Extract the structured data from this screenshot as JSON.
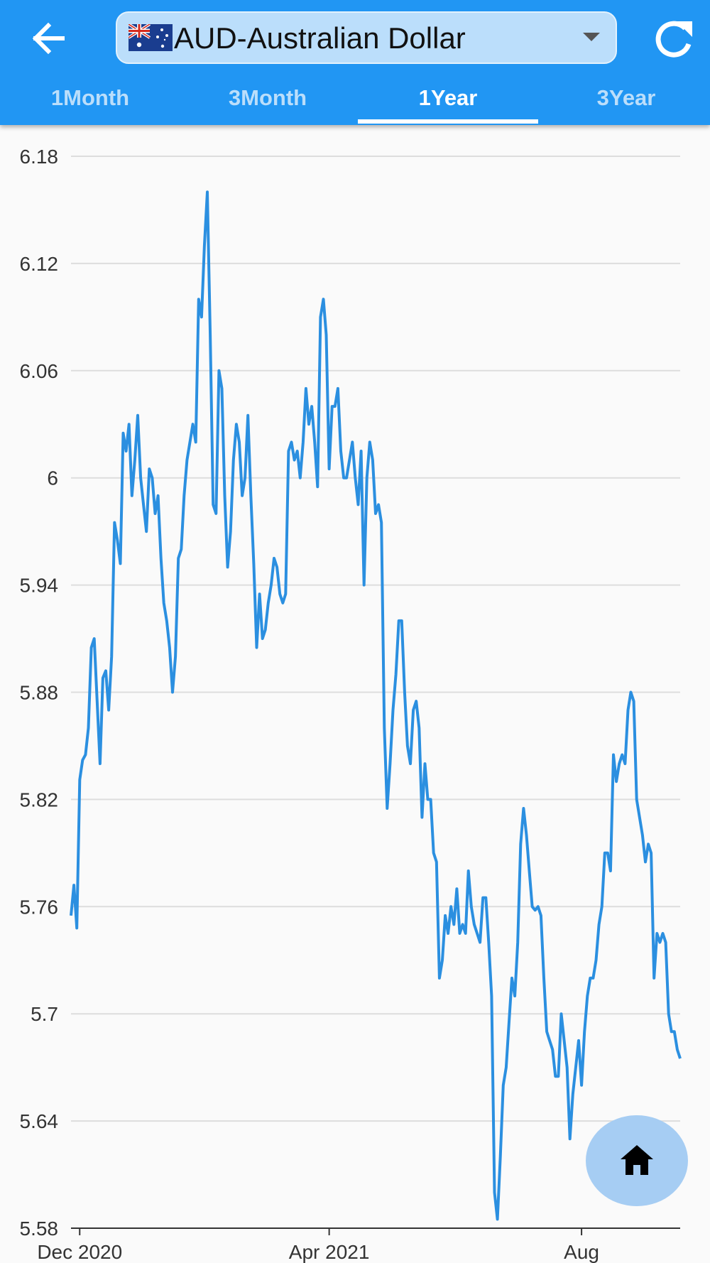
{
  "header": {
    "currency_label": "AUD-Australian Dollar",
    "back_icon": "arrow-left-icon",
    "refresh_icon": "refresh-icon",
    "dropdown_icon": "caret-down-icon",
    "flag_icon": "australia-flag-icon"
  },
  "tabs": [
    {
      "label": "1Month",
      "active": false
    },
    {
      "label": "3Month",
      "active": false
    },
    {
      "label": "1Year",
      "active": true
    },
    {
      "label": "3Year",
      "active": false
    }
  ],
  "colors": {
    "primary": "#2196f3",
    "line": "#2b8fe0",
    "fab": "#a6cdf3",
    "grid": "#dddddd"
  },
  "fab": {
    "icon": "home-icon"
  },
  "chart_data": {
    "type": "line",
    "title": "",
    "xlabel": "",
    "ylabel": "",
    "ylim": [
      5.58,
      6.18
    ],
    "y_ticks": [
      6.18,
      6.12,
      6.06,
      6,
      5.94,
      5.88,
      5.82,
      5.76,
      5.7,
      5.64,
      5.58
    ],
    "x_tick_labels": [
      {
        "label": "Dec 2020",
        "index": 3
      },
      {
        "label": "Apr 2021",
        "index": 89
      },
      {
        "label": "Aug",
        "index": 176
      }
    ],
    "grid": true,
    "legend": "none",
    "series": [
      {
        "values": [
          5.755,
          5.772,
          5.748,
          5.831,
          5.842,
          5.845,
          5.86,
          5.905,
          5.91,
          5.875,
          5.84,
          5.888,
          5.892,
          5.87,
          5.9,
          5.975,
          5.965,
          5.952,
          6.025,
          6.015,
          6.03,
          5.99,
          6.01,
          6.035,
          6.0,
          5.985,
          5.97,
          6.005,
          6.0,
          5.98,
          5.99,
          5.955,
          5.93,
          5.92,
          5.905,
          5.88,
          5.9,
          5.955,
          5.96,
          5.99,
          6.01,
          6.02,
          6.03,
          6.02,
          6.1,
          6.09,
          6.13,
          6.16,
          6.08,
          5.985,
          5.98,
          6.06,
          6.05,
          5.99,
          5.95,
          5.97,
          6.01,
          6.03,
          6.02,
          5.99,
          6.0,
          6.035,
          5.99,
          5.952,
          5.905,
          5.935,
          5.91,
          5.915,
          5.93,
          5.94,
          5.955,
          5.95,
          5.935,
          5.93,
          5.935,
          6.015,
          6.02,
          6.01,
          6.015,
          6.0,
          6.02,
          6.05,
          6.03,
          6.04,
          6.02,
          5.995,
          6.09,
          6.1,
          6.08,
          6.005,
          6.04,
          6.04,
          6.05,
          6.015,
          6.0,
          6.0,
          6.01,
          6.02,
          6.0,
          5.985,
          6.015,
          5.94,
          6.0,
          6.02,
          6.01,
          5.98,
          5.985,
          5.975,
          5.86,
          5.815,
          5.84,
          5.87,
          5.89,
          5.92,
          5.92,
          5.88,
          5.85,
          5.84,
          5.87,
          5.875,
          5.86,
          5.81,
          5.84,
          5.82,
          5.82,
          5.79,
          5.785,
          5.72,
          5.73,
          5.755,
          5.745,
          5.76,
          5.75,
          5.77,
          5.745,
          5.75,
          5.745,
          5.78,
          5.76,
          5.75,
          5.745,
          5.74,
          5.765,
          5.765,
          5.74,
          5.71,
          5.6,
          5.585,
          5.62,
          5.66,
          5.67,
          5.695,
          5.72,
          5.71,
          5.74,
          5.795,
          5.815,
          5.8,
          5.78,
          5.76,
          5.758,
          5.76,
          5.755,
          5.72,
          5.69,
          5.685,
          5.68,
          5.665,
          5.665,
          5.7,
          5.685,
          5.67,
          5.63,
          5.655,
          5.67,
          5.685,
          5.66,
          5.69,
          5.71,
          5.72,
          5.72,
          5.73,
          5.75,
          5.76,
          5.79,
          5.79,
          5.78,
          5.845,
          5.83,
          5.84,
          5.845,
          5.84,
          5.87,
          5.88,
          5.875,
          5.82,
          5.81,
          5.8,
          5.785,
          5.795,
          5.79,
          5.72,
          5.745,
          5.74,
          5.745,
          5.74,
          5.7,
          5.69,
          5.69,
          5.68,
          5.675
        ]
      }
    ]
  }
}
